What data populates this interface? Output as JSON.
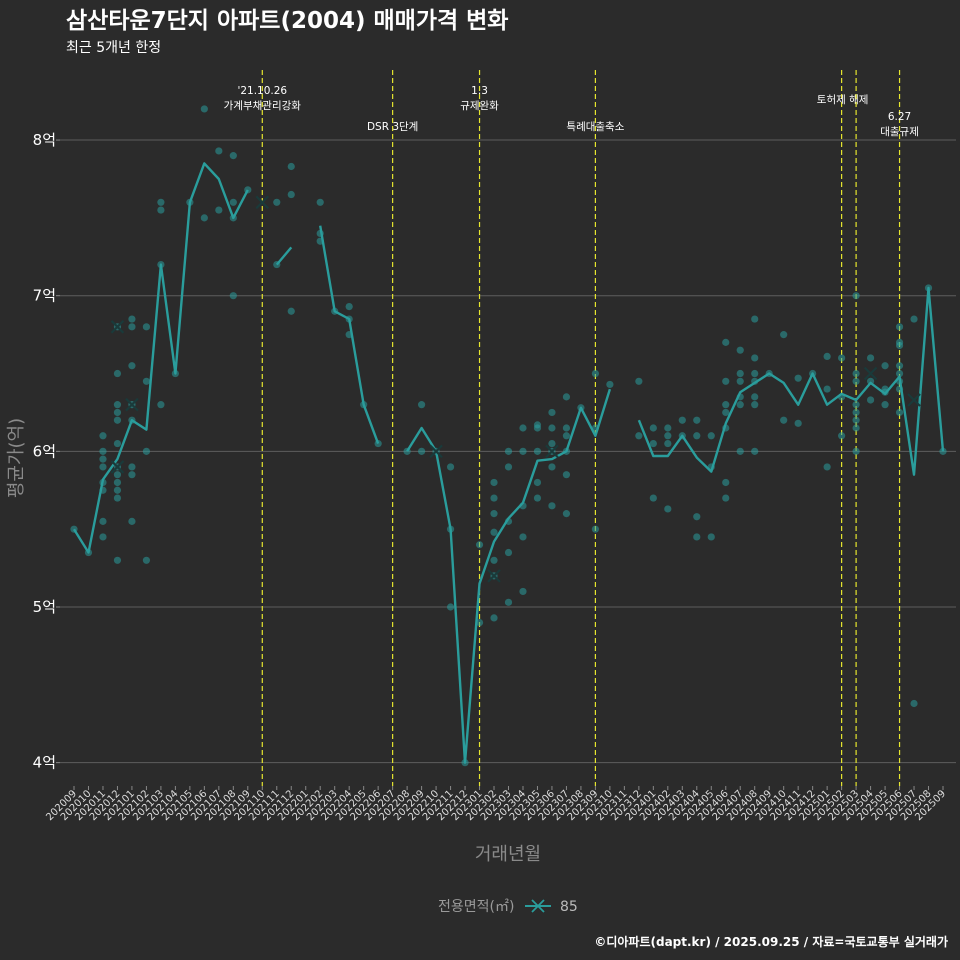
{
  "chart_data": {
    "type": "line",
    "title": "삼산타운7단지 아파트(2004) 매매가격 변화",
    "subtitle": "최근 5개년 한정",
    "xlabel": "거래년월",
    "ylabel": "평균가(억)",
    "ylim": [
      3.85,
      8.45
    ],
    "yticks": [
      4,
      5,
      6,
      7,
      8
    ],
    "ytick_labels": [
      "4억",
      "5억",
      "6억",
      "7억",
      "8억"
    ],
    "x": [
      "202009",
      "202010",
      "202011",
      "202012",
      "202101",
      "202102",
      "202103",
      "202104",
      "202105",
      "202106",
      "202107",
      "202108",
      "202109",
      "202110",
      "202111",
      "202112",
      "202201",
      "202202",
      "202203",
      "202204",
      "202205",
      "202206",
      "202207",
      "202208",
      "202209",
      "202210",
      "202211",
      "202212",
      "202301",
      "202302",
      "202303",
      "202304",
      "202305",
      "202306",
      "202307",
      "202308",
      "202309",
      "202310",
      "202311",
      "202312",
      "202401",
      "202402",
      "202403",
      "202404",
      "202405",
      "202406",
      "202407",
      "202408",
      "202409",
      "202410",
      "202411",
      "202412",
      "202501",
      "202502",
      "202503",
      "202504",
      "202505",
      "202506",
      "202507",
      "202508",
      "202509"
    ],
    "series": [
      {
        "name": "85",
        "color": "#2a9d9c",
        "line": [
          5.5,
          5.35,
          5.82,
          5.95,
          6.2,
          6.14,
          7.2,
          6.5,
          7.6,
          7.85,
          7.75,
          7.5,
          7.68,
          null,
          7.2,
          7.31,
          null,
          7.45,
          6.9,
          6.85,
          6.3,
          6.05,
          null,
          6.0,
          6.15,
          6.0,
          5.5,
          4.0,
          5.15,
          5.42,
          5.57,
          5.67,
          5.94,
          5.95,
          6.0,
          6.28,
          6.1,
          6.4,
          null,
          6.2,
          5.97,
          5.97,
          6.1,
          5.96,
          5.87,
          6.18,
          6.38,
          6.44,
          6.5,
          6.44,
          6.3,
          6.5,
          6.3,
          6.37,
          6.33,
          6.44,
          6.37,
          6.48,
          5.85,
          7.05,
          6.0
        ],
        "points": [
          [
            0,
            5.5
          ],
          [
            1,
            5.35
          ],
          [
            2,
            5.45
          ],
          [
            2,
            5.55
          ],
          [
            2,
            5.75
          ],
          [
            2,
            5.8
          ],
          [
            2,
            5.9
          ],
          [
            2,
            5.95
          ],
          [
            2,
            6.0
          ],
          [
            2,
            6.1
          ],
          [
            3,
            5.3
          ],
          [
            3,
            5.7
          ],
          [
            3,
            5.75
          ],
          [
            3,
            5.8
          ],
          [
            3,
            5.85
          ],
          [
            3,
            5.9
          ],
          [
            3,
            6.05
          ],
          [
            3,
            6.2
          ],
          [
            3,
            6.25
          ],
          [
            3,
            6.3
          ],
          [
            3,
            6.5
          ],
          [
            3,
            6.8
          ],
          [
            4,
            5.55
          ],
          [
            4,
            5.85
          ],
          [
            4,
            5.9
          ],
          [
            4,
            6.2
          ],
          [
            4,
            6.3
          ],
          [
            4,
            6.55
          ],
          [
            4,
            6.8
          ],
          [
            4,
            6.85
          ],
          [
            5,
            5.3
          ],
          [
            5,
            6.0
          ],
          [
            5,
            6.45
          ],
          [
            5,
            6.8
          ],
          [
            6,
            6.3
          ],
          [
            6,
            7.2
          ],
          [
            6,
            7.55
          ],
          [
            6,
            7.6
          ],
          [
            7,
            6.5
          ],
          [
            8,
            7.6
          ],
          [
            9,
            7.5
          ],
          [
            9,
            8.2
          ],
          [
            10,
            7.55
          ],
          [
            10,
            7.93
          ],
          [
            11,
            7.0
          ],
          [
            11,
            7.5
          ],
          [
            11,
            7.6
          ],
          [
            11,
            7.9
          ],
          [
            12,
            7.68
          ],
          [
            14,
            7.2
          ],
          [
            14,
            7.6
          ],
          [
            15,
            6.9
          ],
          [
            15,
            7.65
          ],
          [
            15,
            7.83
          ],
          [
            17,
            7.35
          ],
          [
            17,
            7.4
          ],
          [
            17,
            7.6
          ],
          [
            18,
            6.9
          ],
          [
            19,
            6.75
          ],
          [
            19,
            6.85
          ],
          [
            19,
            6.93
          ],
          [
            20,
            6.3
          ],
          [
            21,
            6.05
          ],
          [
            23,
            6.0
          ],
          [
            24,
            6.0
          ],
          [
            24,
            6.3
          ],
          [
            25,
            6.0
          ],
          [
            26,
            5.5
          ],
          [
            26,
            5.9
          ],
          [
            26,
            5.0
          ],
          [
            27,
            4.0
          ],
          [
            28,
            4.9
          ],
          [
            28,
            5.4
          ],
          [
            29,
            4.93
          ],
          [
            29,
            5.2
          ],
          [
            29,
            5.3
          ],
          [
            29,
            5.48
          ],
          [
            29,
            5.6
          ],
          [
            29,
            5.7
          ],
          [
            29,
            5.8
          ],
          [
            30,
            5.03
          ],
          [
            30,
            5.35
          ],
          [
            30,
            5.55
          ],
          [
            30,
            5.9
          ],
          [
            30,
            6.0
          ],
          [
            31,
            5.1
          ],
          [
            31,
            5.45
          ],
          [
            31,
            5.65
          ],
          [
            31,
            6.0
          ],
          [
            31,
            6.15
          ],
          [
            32,
            5.7
          ],
          [
            32,
            5.8
          ],
          [
            32,
            6.0
          ],
          [
            32,
            6.15
          ],
          [
            32,
            6.17
          ],
          [
            33,
            5.65
          ],
          [
            33,
            5.9
          ],
          [
            33,
            6.0
          ],
          [
            33,
            6.05
          ],
          [
            33,
            6.15
          ],
          [
            33,
            6.25
          ],
          [
            34,
            5.6
          ],
          [
            34,
            5.85
          ],
          [
            34,
            6.0
          ],
          [
            34,
            6.1
          ],
          [
            34,
            6.15
          ],
          [
            34,
            6.35
          ],
          [
            35,
            6.28
          ],
          [
            36,
            5.5
          ],
          [
            36,
            6.15
          ],
          [
            36,
            6.5
          ],
          [
            37,
            6.43
          ],
          [
            39,
            6.1
          ],
          [
            39,
            6.45
          ],
          [
            40,
            5.7
          ],
          [
            40,
            6.05
          ],
          [
            40,
            6.15
          ],
          [
            41,
            5.63
          ],
          [
            41,
            6.05
          ],
          [
            41,
            6.1
          ],
          [
            41,
            6.15
          ],
          [
            42,
            6.1
          ],
          [
            42,
            6.2
          ],
          [
            43,
            5.45
          ],
          [
            43,
            5.58
          ],
          [
            43,
            6.1
          ],
          [
            43,
            6.2
          ],
          [
            44,
            5.45
          ],
          [
            44,
            5.9
          ],
          [
            44,
            6.1
          ],
          [
            45,
            5.7
          ],
          [
            45,
            5.8
          ],
          [
            45,
            6.15
          ],
          [
            45,
            6.25
          ],
          [
            45,
            6.3
          ],
          [
            45,
            6.45
          ],
          [
            45,
            6.7
          ],
          [
            46,
            6.0
          ],
          [
            46,
            6.3
          ],
          [
            46,
            6.35
          ],
          [
            46,
            6.45
          ],
          [
            46,
            6.5
          ],
          [
            46,
            6.65
          ],
          [
            47,
            6.0
          ],
          [
            47,
            6.3
          ],
          [
            47,
            6.35
          ],
          [
            47,
            6.45
          ],
          [
            47,
            6.5
          ],
          [
            47,
            6.6
          ],
          [
            47,
            6.85
          ],
          [
            48,
            6.5
          ],
          [
            49,
            6.2
          ],
          [
            49,
            6.75
          ],
          [
            50,
            6.18
          ],
          [
            50,
            6.47
          ],
          [
            51,
            6.5
          ],
          [
            52,
            5.9
          ],
          [
            52,
            6.4
          ],
          [
            52,
            6.61
          ],
          [
            53,
            6.1
          ],
          [
            53,
            6.35
          ],
          [
            53,
            6.6
          ],
          [
            54,
            6.0
          ],
          [
            54,
            6.15
          ],
          [
            54,
            6.2
          ],
          [
            54,
            6.25
          ],
          [
            54,
            6.3
          ],
          [
            54,
            6.45
          ],
          [
            54,
            6.5
          ],
          [
            54,
            7.0
          ],
          [
            55,
            6.33
          ],
          [
            55,
            6.45
          ],
          [
            55,
            6.6
          ],
          [
            56,
            6.3
          ],
          [
            56,
            6.38
          ],
          [
            56,
            6.4
          ],
          [
            56,
            6.55
          ],
          [
            57,
            6.25
          ],
          [
            57,
            6.4
          ],
          [
            57,
            6.45
          ],
          [
            57,
            6.5
          ],
          [
            57,
            6.55
          ],
          [
            57,
            6.68
          ],
          [
            57,
            6.7
          ],
          [
            57,
            6.8
          ],
          [
            58,
            4.38
          ],
          [
            58,
            6.85
          ],
          [
            59,
            7.05
          ],
          [
            60,
            6.0
          ]
        ],
        "crosses": [
          [
            3,
            5.9
          ],
          [
            3,
            6.8
          ],
          [
            4,
            6.3
          ],
          [
            13,
            7.6
          ],
          [
            25,
            6.0
          ],
          [
            29,
            5.2
          ],
          [
            33,
            6.0
          ],
          [
            55,
            6.5
          ],
          [
            58,
            6.33
          ]
        ]
      }
    ],
    "events": [
      {
        "at": "202110",
        "lines": [
          "'21.10.26",
          "가계부채관리강화"
        ],
        "tier": "top"
      },
      {
        "at": "202207",
        "lines": [
          "DSR 3단계"
        ],
        "tier": "low"
      },
      {
        "at": "202301",
        "lines": [
          "1.3",
          "규제완화"
        ],
        "tier": "top"
      },
      {
        "at": "202309",
        "lines": [
          "특례대출축소"
        ],
        "tier": "low"
      },
      {
        "at": "202502",
        "lines": [
          "토허제 해제"
        ],
        "tier": "mid",
        "shared": true
      },
      {
        "at": "202503",
        "lines": [],
        "tier": "mid"
      },
      {
        "at": "202506",
        "lines": [
          "6.27",
          "대출규제"
        ],
        "tier": "high"
      }
    ],
    "legend": {
      "title": "전용면적(㎡)",
      "items": [
        "85"
      ],
      "position": "bottom"
    },
    "caption": "©디아파트(dapt.kr) / 2025.09.25 / 자료=국토교통부 실거래가"
  }
}
